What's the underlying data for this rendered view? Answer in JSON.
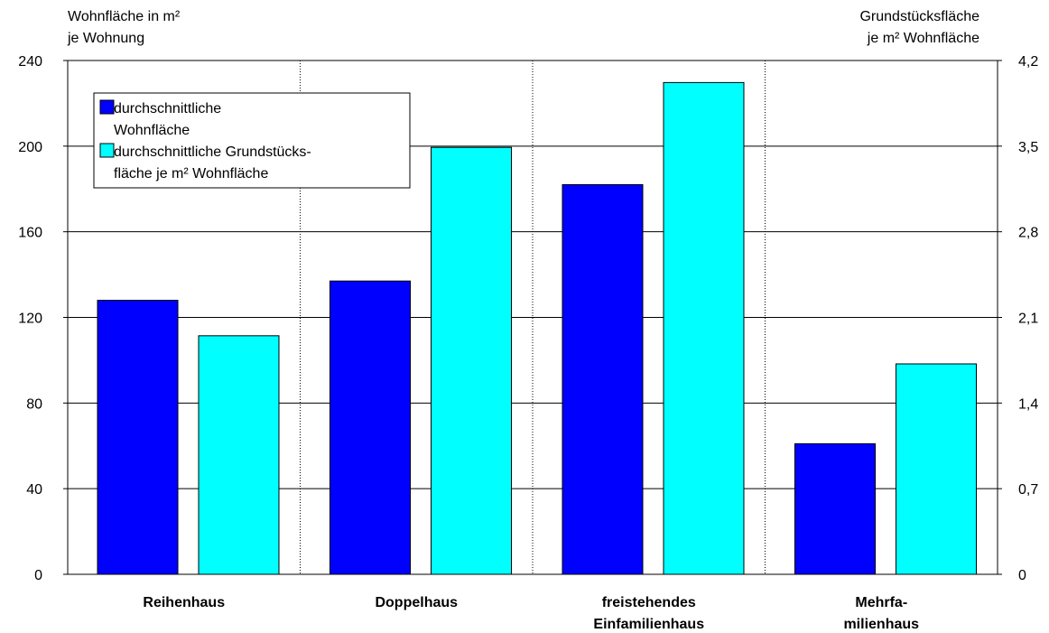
{
  "chart_data": {
    "type": "bar",
    "categories": [
      [
        "Reihenhaus"
      ],
      [
        "Doppelhaus"
      ],
      [
        "freistehendes",
        "Einfamilienhaus"
      ],
      [
        "Mehrfa-",
        "milienhaus"
      ]
    ],
    "series": [
      {
        "name": [
          "durchschnittliche",
          "Wohnfläche"
        ],
        "axis": "left",
        "color": "#0000FF",
        "values": [
          128,
          137,
          182,
          61
        ]
      },
      {
        "name": [
          "durchschnittliche Grundstücks-",
          "fläche je m² Wohnfläche"
        ],
        "axis": "right",
        "color": "#00FFFF",
        "values": [
          1.95,
          3.49,
          4.02,
          1.72
        ]
      }
    ],
    "y_left": {
      "label": [
        "Wohnfläche in m²",
        "je Wohnung"
      ],
      "ylim": [
        0,
        240
      ],
      "ticks": [
        "0",
        "40",
        "80",
        "120",
        "160",
        "200",
        "240"
      ]
    },
    "y_right": {
      "label": [
        "Grundstücksfläche",
        "je m² Wohnfläche"
      ],
      "ylim": [
        0,
        4.2
      ],
      "ticks": [
        "0",
        "0,7",
        "1,4",
        "2,1",
        "2,8",
        "3,5",
        "4,2"
      ]
    },
    "grid": true,
    "legend_position": "top-left"
  }
}
